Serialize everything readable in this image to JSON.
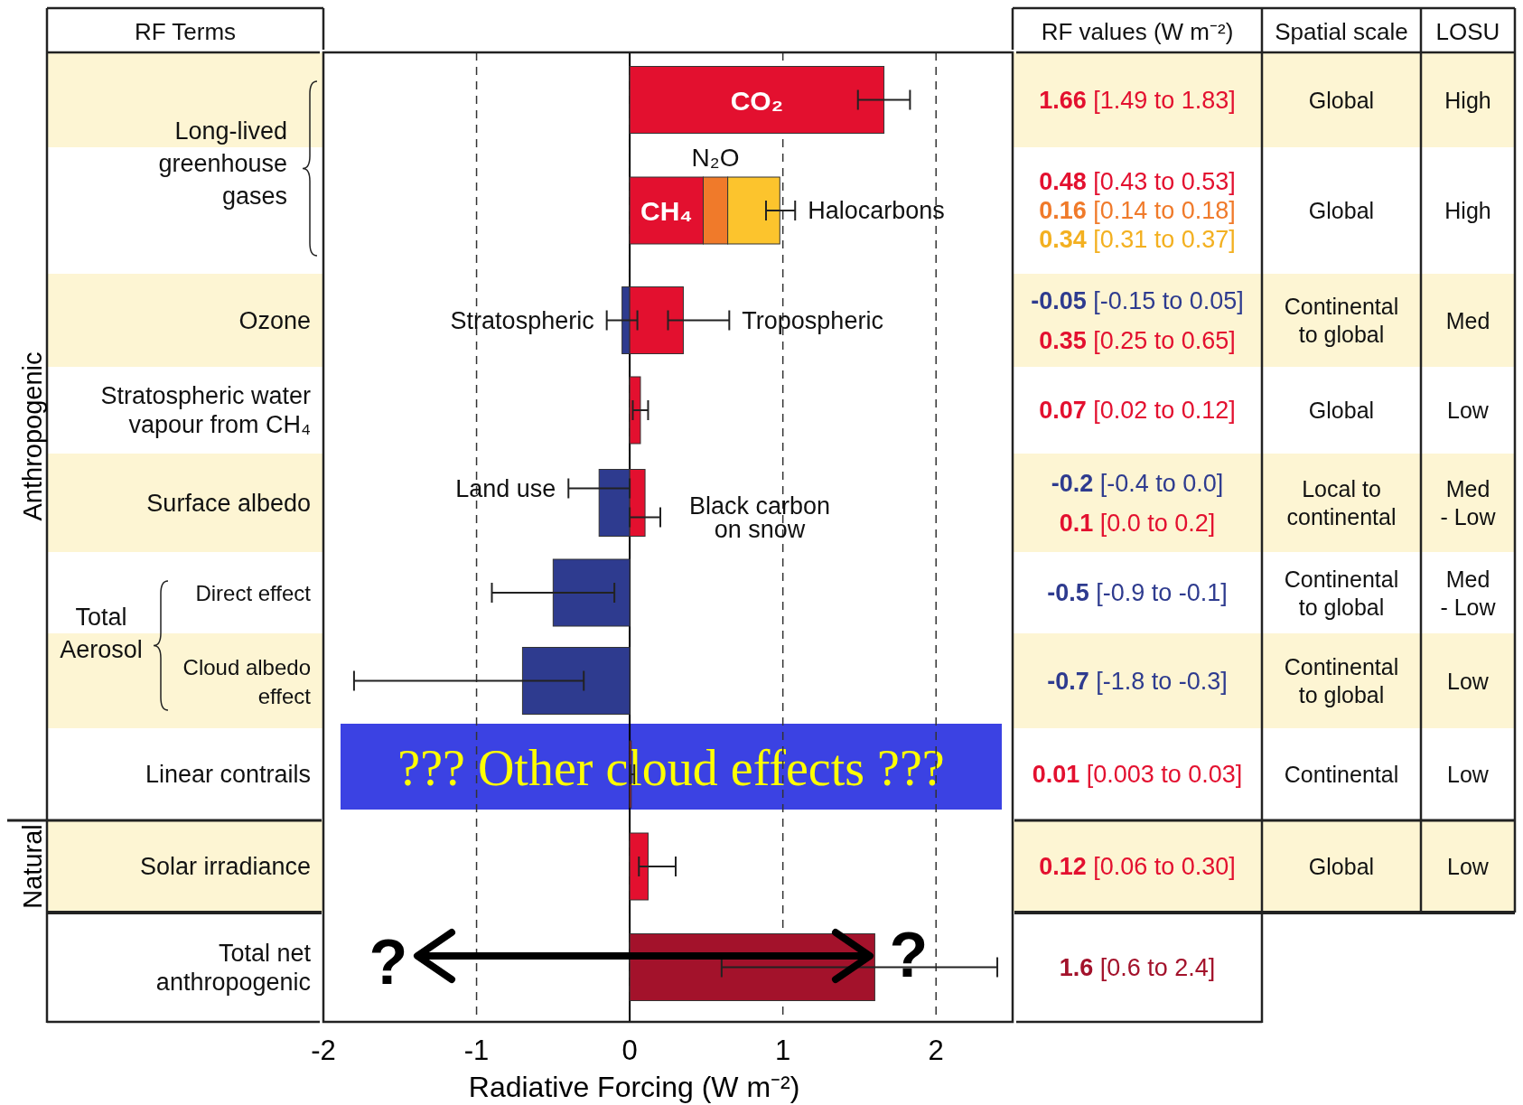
{
  "chart_data": [
    {
      "type": "bar",
      "orientation": "horizontal",
      "stacked": true,
      "ylabel": "RF Terms",
      "xlabel": "Radiative Forcing  (W m⁻²)",
      "categories": [
        null,
        null,
        "Ozone",
        "Stratospheric water vapour from CH₄",
        "Surface albedo",
        "Direct effect",
        "Cloud albedo effect",
        "Linear contrails",
        "Solar irradiance",
        "Total net anthropogenic"
      ],
      "xlim": [
        -2,
        2.5
      ],
      "xticks": [
        -2,
        -1,
        0,
        1,
        2
      ],
      "grid": "x",
      "ref_lines": [
        {
          "axis": "x",
          "value": 0,
          "color": "#000000"
        }
      ],
      "annotations": [
        "Long-lived greenhouse gases",
        "Total Aerosol",
        "Anthropogenic",
        "Natural",
        "??? Other cloud effects ???",
        "?",
        "?"
      ],
      "series": [
        {
          "name": "CO₂",
          "color": "#e3102f",
          "values": [
            1.66,
            null,
            null,
            null,
            null,
            null,
            null,
            null,
            null,
            null
          ],
          "errors": [
            [
              1.49,
              1.83
            ],
            null,
            null,
            null,
            null,
            null,
            null,
            null,
            null,
            null
          ]
        },
        {
          "name": "CH₄",
          "color": "#e3102f",
          "values": [
            null,
            0.48,
            null,
            null,
            null,
            null,
            null,
            null,
            null,
            null
          ]
        },
        {
          "name": "N₂O",
          "color": "#f07a2a",
          "values": [
            null,
            0.16,
            null,
            null,
            null,
            null,
            null,
            null,
            null,
            null
          ]
        },
        {
          "name": "Halocarbons",
          "color": "#fcc42d",
          "values": [
            null,
            0.34,
            null,
            null,
            null,
            null,
            null,
            null,
            null,
            null
          ],
          "errors": [
            null,
            [
              0.89,
              1.08
            ],
            null,
            null,
            null,
            null,
            null,
            null,
            null,
            null
          ]
        },
        {
          "name": "Stratospheric",
          "color": "#2e3b8f",
          "values": [
            null,
            null,
            -0.05,
            null,
            null,
            null,
            null,
            null,
            null,
            null
          ],
          "errors": [
            null,
            null,
            [
              -0.15,
              0.05
            ],
            null,
            null,
            null,
            null,
            null,
            null,
            null
          ]
        },
        {
          "name": "Tropospheric",
          "color": "#e3102f",
          "values": [
            null,
            null,
            0.35,
            null,
            null,
            null,
            null,
            null,
            null,
            null
          ],
          "errors": [
            null,
            null,
            [
              0.25,
              0.65
            ],
            null,
            null,
            null,
            null,
            null,
            null,
            null
          ]
        },
        {
          "name": "Land use",
          "color": "#2e3b8f",
          "values": [
            null,
            null,
            null,
            null,
            -0.2,
            null,
            null,
            null,
            null,
            null
          ],
          "errors": [
            null,
            null,
            null,
            null,
            [
              -0.4,
              0.0
            ],
            null,
            null,
            null,
            null,
            null
          ]
        },
        {
          "name": "Black carbon on snow",
          "color": "#e3102f",
          "values": [
            null,
            null,
            null,
            null,
            0.1,
            null,
            null,
            null,
            null,
            null
          ],
          "errors": [
            null,
            null,
            null,
            null,
            [
              0.0,
              0.2
            ],
            null,
            null,
            null,
            null,
            null
          ]
        },
        {
          "colors": [
            "#e3102f",
            "#e3102f",
            "#e3102f",
            "#e3102f",
            "#e3102f",
            "#2e3b8f",
            "#2e3b8f",
            "#e3102f",
            "#e3102f",
            "#e3102f"
          ],
          "values": [
            null,
            null,
            null,
            0.07,
            null,
            -0.5,
            -0.7,
            0.01,
            0.12,
            null
          ],
          "errors": [
            null,
            null,
            null,
            [
              0.02,
              0.12
            ],
            null,
            [
              -0.9,
              -0.1
            ],
            [
              -1.8,
              -0.3
            ],
            [
              0.003,
              0.03
            ],
            [
              0.06,
              0.3
            ],
            null
          ]
        },
        {
          "color": "#a3122b",
          "values": [
            null,
            null,
            null,
            null,
            null,
            null,
            null,
            null,
            null,
            1.6
          ],
          "errors": [
            null,
            null,
            null,
            null,
            null,
            null,
            null,
            null,
            null,
            [
              0.6,
              2.4
            ]
          ]
        }
      ]
    },
    {
      "type": "other",
      "title": "RF values (W m⁻²)",
      "categories": [
        "1.66 [1.49 to 1.83]",
        "0.48 [0.43 to 0.53]",
        "0.16 [0.14 to 0.18]",
        "0.34 [0.31 to 0.37]",
        "-0.05 [-0.15 to 0.05]",
        "0.35 [0.25 to 0.65]",
        "0.07 [0.02 to 0.12]",
        "-0.2 [-0.4 to 0.0]",
        "0.1 [0.0 to 0.2]",
        "-0.5 [-0.9 to -0.1]",
        "-0.7 [-1.8 to -0.3]",
        "0.01 [0.003 to 0.03]",
        "0.12 [0.06 to 0.30]",
        "1.6 [0.6 to 2.4]"
      ],
      "colors": [
        "#e3102f",
        "#e3102f",
        "#f07a2a",
        "#f3b020",
        "#2e3b8f",
        "#e3102f",
        "#e3102f",
        "#2e3b8f",
        "#e3102f",
        "#2e3b8f",
        "#2e3b8f",
        "#e3102f",
        "#e3102f",
        "#a3122b"
      ]
    },
    {
      "type": "other",
      "title": "Spatial scale",
      "categories": [
        "Global",
        "Global",
        "Continental to global",
        "Global",
        "Local to continental",
        "Continental to global",
        "Continental to global",
        "Continental",
        "Global",
        null
      ]
    },
    {
      "type": "other",
      "title": "LOSU",
      "categories": [
        "High",
        "High",
        "Med",
        "Low",
        "Med - Low",
        "Med - Low",
        "Low",
        "Low",
        "Low",
        null
      ]
    }
  ]
}
